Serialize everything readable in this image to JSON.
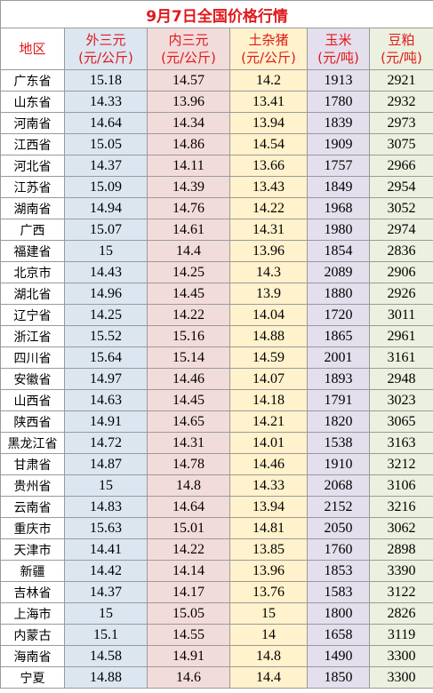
{
  "title": "9月7日全国价格行情",
  "table": {
    "header": [
      [
        "地区"
      ],
      [
        "外三元",
        "(元/公斤)"
      ],
      [
        "内三元",
        "(元/公斤)"
      ],
      [
        "土杂猪",
        "(元/公斤)"
      ],
      [
        "玉米",
        "(元/吨)"
      ],
      [
        "豆粕",
        "(元/吨)"
      ]
    ],
    "rows": [
      [
        "广东省",
        15.18,
        14.57,
        14.2,
        1913,
        2921
      ],
      [
        "山东省",
        14.33,
        13.96,
        13.41,
        1780,
        2932
      ],
      [
        "河南省",
        14.64,
        14.34,
        13.94,
        1839,
        2973
      ],
      [
        "江西省",
        15.05,
        14.86,
        14.54,
        1909,
        3075
      ],
      [
        "河北省",
        14.37,
        14.11,
        13.66,
        1757,
        2966
      ],
      [
        "江苏省",
        15.09,
        14.39,
        13.43,
        1849,
        2954
      ],
      [
        "湖南省",
        14.94,
        14.76,
        14.22,
        1968,
        3052
      ],
      [
        "广西",
        15.07,
        14.61,
        14.31,
        1980,
        2974
      ],
      [
        "福建省",
        15,
        14.4,
        13.96,
        1854,
        2836
      ],
      [
        "北京市",
        14.43,
        14.25,
        14.3,
        2089,
        2906
      ],
      [
        "湖北省",
        14.96,
        14.45,
        13.9,
        1880,
        2926
      ],
      [
        "辽宁省",
        14.25,
        14.22,
        14.04,
        1720,
        3011
      ],
      [
        "浙江省",
        15.52,
        15.16,
        14.88,
        1865,
        2961
      ],
      [
        "四川省",
        15.64,
        15.14,
        14.59,
        2001,
        3161
      ],
      [
        "安徽省",
        14.97,
        14.46,
        14.07,
        1893,
        2948
      ],
      [
        "山西省",
        14.63,
        14.45,
        14.18,
        1791,
        3023
      ],
      [
        "陕西省",
        14.91,
        14.65,
        14.21,
        1820,
        3065
      ],
      [
        "黑龙江省",
        14.72,
        14.31,
        14.01,
        1538,
        3163
      ],
      [
        "甘肃省",
        14.87,
        14.78,
        14.46,
        1910,
        3212
      ],
      [
        "贵州省",
        15,
        14.8,
        14.33,
        2068,
        3106
      ],
      [
        "云南省",
        14.83,
        14.64,
        13.94,
        2152,
        3216
      ],
      [
        "重庆市",
        15.63,
        15.01,
        14.81,
        2050,
        3062
      ],
      [
        "天津市",
        14.41,
        14.22,
        13.85,
        1760,
        2898
      ],
      [
        "新疆",
        14.42,
        14.14,
        13.96,
        1853,
        3390
      ],
      [
        "吉林省",
        14.37,
        14.17,
        13.76,
        1583,
        3122
      ],
      [
        "上海市",
        15,
        15.05,
        15,
        1800,
        2826
      ],
      [
        "内蒙古",
        15.1,
        14.55,
        14,
        1658,
        3119
      ],
      [
        "海南省",
        14.58,
        14.91,
        14.8,
        1490,
        3300
      ],
      [
        "宁夏",
        14.88,
        14.6,
        14.4,
        1850,
        3300
      ]
    ]
  }
}
